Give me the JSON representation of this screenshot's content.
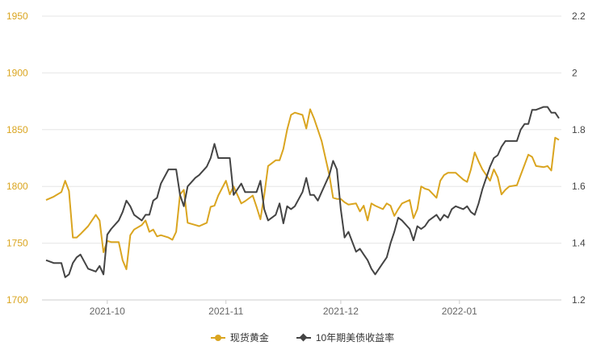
{
  "chart_data": {
    "type": "line",
    "x": [
      "2021-09-15",
      "2021-09-17",
      "2021-09-19",
      "2021-09-20",
      "2021-09-21",
      "2021-09-22",
      "2021-09-23",
      "2021-09-24",
      "2021-09-26",
      "2021-09-28",
      "2021-09-29",
      "2021-09-30",
      "2021-10-01",
      "2021-10-02",
      "2021-10-04",
      "2021-10-05",
      "2021-10-06",
      "2021-10-07",
      "2021-10-08",
      "2021-10-10",
      "2021-10-11",
      "2021-10-12",
      "2021-10-13",
      "2021-10-14",
      "2021-10-15",
      "2021-10-17",
      "2021-10-18",
      "2021-10-19",
      "2021-10-20",
      "2021-10-21",
      "2021-10-22",
      "2021-10-24",
      "2021-10-25",
      "2021-10-27",
      "2021-10-28",
      "2021-10-29",
      "2021-10-30",
      "2021-11-01",
      "2021-11-02",
      "2021-11-03",
      "2021-11-05",
      "2021-11-06",
      "2021-11-08",
      "2021-11-09",
      "2021-11-10",
      "2021-11-11",
      "2021-11-12",
      "2021-11-14",
      "2021-11-15",
      "2021-11-16",
      "2021-11-17",
      "2021-11-18",
      "2021-11-19",
      "2021-11-21",
      "2021-11-22",
      "2021-11-23",
      "2021-11-24",
      "2021-11-25",
      "2021-11-26",
      "2021-11-28",
      "2021-11-29",
      "2021-11-30",
      "2021-12-01",
      "2021-12-02",
      "2021-12-03",
      "2021-12-05",
      "2021-12-06",
      "2021-12-07",
      "2021-12-08",
      "2021-12-09",
      "2021-12-10",
      "2021-12-12",
      "2021-12-13",
      "2021-12-14",
      "2021-12-15",
      "2021-12-16",
      "2021-12-17",
      "2021-12-19",
      "2021-12-20",
      "2021-12-21",
      "2021-12-22",
      "2021-12-23",
      "2021-12-24",
      "2021-12-26",
      "2021-12-27",
      "2021-12-28",
      "2021-12-29",
      "2021-12-30",
      "2021-12-31",
      "2022-01-02",
      "2022-01-03",
      "2022-01-04",
      "2022-01-05",
      "2022-01-06",
      "2022-01-07",
      "2022-01-09",
      "2022-01-10",
      "2022-01-11",
      "2022-01-12",
      "2022-01-13",
      "2022-01-14",
      "2022-01-16",
      "2022-01-17",
      "2022-01-18",
      "2022-01-19",
      "2022-01-20",
      "2022-01-21",
      "2022-01-23",
      "2022-01-24",
      "2022-01-25",
      "2022-01-26",
      "2022-01-27"
    ],
    "series": [
      {
        "name": "现货黄金",
        "color": "#DAA520",
        "axis": "left",
        "values": [
          1788,
          1791,
          1795,
          1805,
          1796,
          1755,
          1755,
          1758,
          1765,
          1775,
          1770,
          1742,
          1752,
          1751,
          1751,
          1735,
          1727,
          1757,
          1762,
          1766,
          1770,
          1760,
          1762,
          1756,
          1757,
          1755,
          1753,
          1760,
          1793,
          1797,
          1768,
          1766,
          1765,
          1768,
          1782,
          1783,
          1792,
          1805,
          1793,
          1800,
          1785,
          1787,
          1792,
          1782,
          1771,
          1792,
          1818,
          1823,
          1823,
          1833,
          1850,
          1863,
          1865,
          1863,
          1851,
          1868,
          1860,
          1850,
          1840,
          1810,
          1790,
          1789,
          1789,
          1786,
          1784,
          1785,
          1778,
          1783,
          1770,
          1785,
          1783,
          1780,
          1785,
          1783,
          1774,
          1780,
          1785,
          1788,
          1772,
          1780,
          1800,
          1798,
          1797,
          1790,
          1805,
          1810,
          1812,
          1812,
          1812,
          1806,
          1804,
          1815,
          1830,
          1822,
          1815,
          1805,
          1815,
          1808,
          1793,
          1797,
          1800,
          1801,
          1810,
          1819,
          1828,
          1826,
          1818,
          1817,
          1818,
          1814,
          1843,
          1841
        ],
        "note": ""
      },
      {
        "name": "10年期美债收益率",
        "color": "#444444",
        "axis": "right",
        "values": [
          1.34,
          1.33,
          1.33,
          1.28,
          1.29,
          1.33,
          1.35,
          1.36,
          1.31,
          1.3,
          1.32,
          1.29,
          1.43,
          1.45,
          1.48,
          1.51,
          1.55,
          1.53,
          1.5,
          1.48,
          1.5,
          1.5,
          1.55,
          1.56,
          1.61,
          1.66,
          1.66,
          1.66,
          1.57,
          1.53,
          1.6,
          1.63,
          1.64,
          1.67,
          1.7,
          1.75,
          1.7,
          1.7,
          1.7,
          1.57,
          1.61,
          1.58,
          1.58,
          1.58,
          1.62,
          1.52,
          1.48,
          1.5,
          1.54,
          1.47,
          1.53,
          1.52,
          1.53,
          1.58,
          1.63,
          1.57,
          1.57,
          1.55,
          1.58,
          1.64,
          1.69,
          1.66,
          1.52,
          1.42,
          1.44,
          1.37,
          1.38,
          1.36,
          1.34,
          1.31,
          1.29,
          1.33,
          1.35,
          1.4,
          1.44,
          1.49,
          1.48,
          1.45,
          1.41,
          1.46,
          1.45,
          1.46,
          1.48,
          1.5,
          1.48,
          1.5,
          1.49,
          1.52,
          1.53,
          1.52,
          1.53,
          1.51,
          1.5,
          1.54,
          1.59,
          1.67,
          1.7,
          1.71,
          1.74,
          1.76,
          1.76,
          1.76,
          1.8,
          1.82,
          1.82,
          1.87,
          1.87,
          1.88,
          1.88,
          1.86,
          1.86,
          1.84
        ]
      }
    ],
    "x_ticks": [
      "2021-10",
      "2021-11",
      "2021-12",
      "2022-01"
    ],
    "y_left": {
      "ticks": [
        "1950",
        "1900",
        "1850",
        "1800",
        "1750",
        "1700"
      ],
      "range": [
        1700,
        1950
      ],
      "color": "#DAA520"
    },
    "y_right": {
      "ticks": [
        "2.2",
        "2",
        "1.8",
        "1.6",
        "1.4",
        "1.2"
      ],
      "range": [
        1.2,
        2.2
      ],
      "color": "#444444"
    },
    "grid": true,
    "legend_position": "bottom"
  },
  "legend": {
    "gold_label": "现货黄金",
    "yield_label": "10年期美债收益率"
  }
}
